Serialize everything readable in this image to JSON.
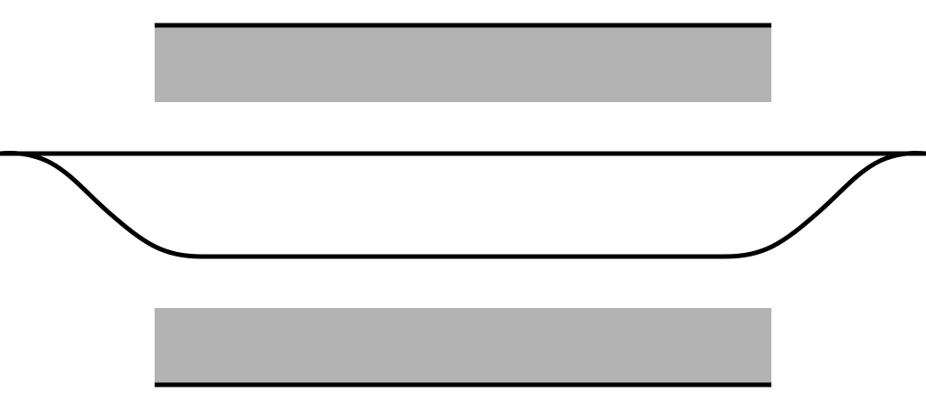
{
  "colors": {
    "background": "#ffffff",
    "plate_fill": "#b3b3b3",
    "stroke": "#000000"
  }
}
